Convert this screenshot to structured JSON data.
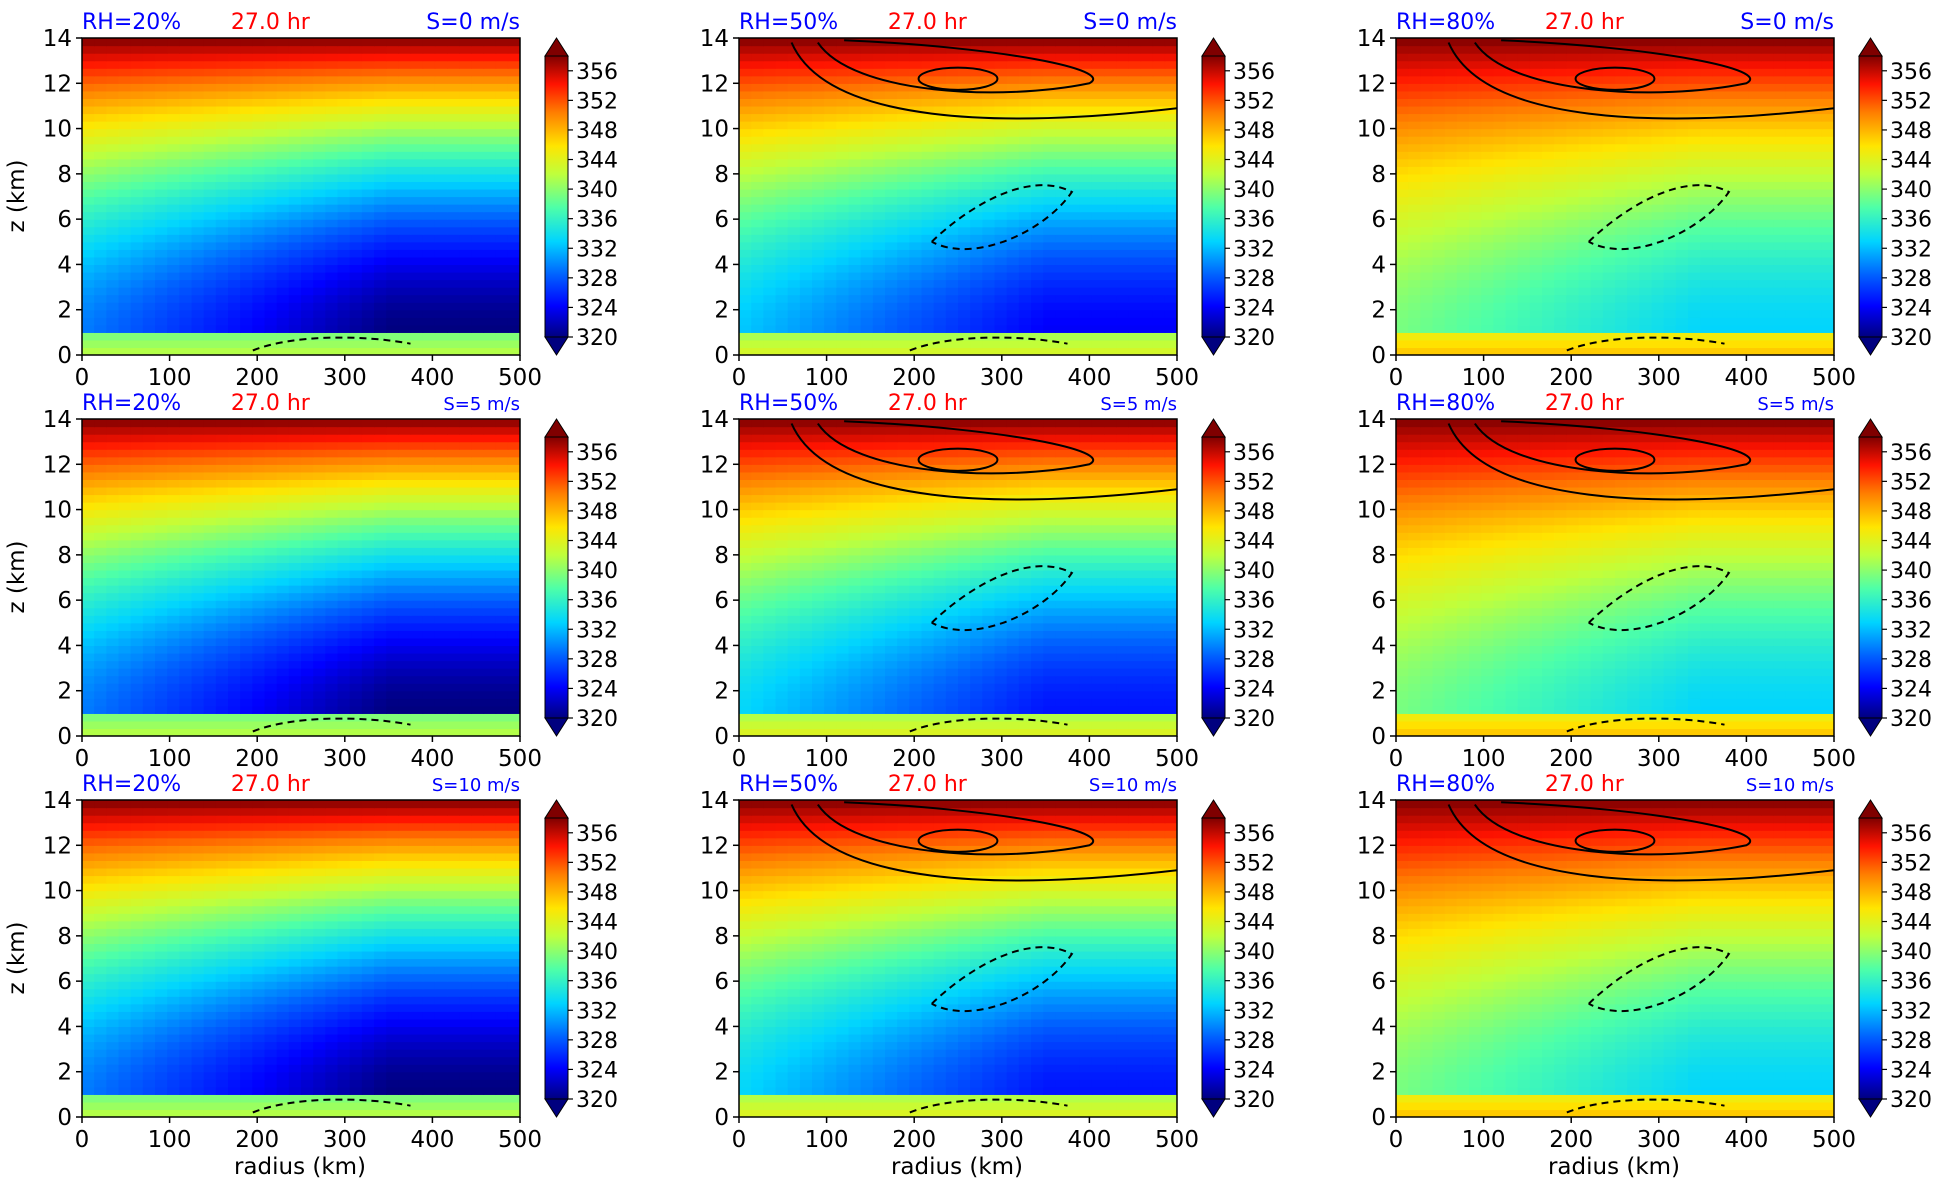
{
  "figure": {
    "xlabel": "radius (km)",
    "ylabel": "z (km)",
    "colorbar_ticks": [
      "320",
      "324",
      "328",
      "332",
      "336",
      "340",
      "344",
      "348",
      "352",
      "356"
    ],
    "colorbar_range": [
      320,
      358
    ],
    "title_rh_color": "#0000ff",
    "title_time_color": "#ff0000",
    "title_shear_color": "#0000ff"
  },
  "chart_data": [
    {
      "type": "heatmap",
      "rh": "RH=20%",
      "time": "27.0 hr",
      "shear": "S=0 m/s",
      "xlim": [
        0,
        500
      ],
      "ylim": [
        0,
        14
      ],
      "x_ticks": [
        "0",
        "100",
        "200",
        "300",
        "400",
        "500"
      ],
      "y_ticks": [
        "0",
        "2",
        "4",
        "6",
        "8",
        "10",
        "12",
        "14"
      ],
      "min_theta_value": 320,
      "max_theta_value": 358,
      "solid_contours": false
    },
    {
      "type": "heatmap",
      "rh": "RH=50%",
      "time": "27.0 hr",
      "shear": "S=0 m/s",
      "xlim": [
        0,
        500
      ],
      "ylim": [
        0,
        14
      ],
      "x_ticks": [
        "0",
        "100",
        "200",
        "300",
        "400",
        "500"
      ],
      "y_ticks": [
        "0",
        "2",
        "4",
        "6",
        "8",
        "10",
        "12",
        "14"
      ],
      "min_theta_value": 324,
      "max_theta_value": 358,
      "solid_contours": true
    },
    {
      "type": "heatmap",
      "rh": "RH=80%",
      "time": "27.0 hr",
      "shear": "S=0 m/s",
      "xlim": [
        0,
        500
      ],
      "ylim": [
        0,
        14
      ],
      "x_ticks": [
        "0",
        "100",
        "200",
        "300",
        "400",
        "500"
      ],
      "y_ticks": [
        "0",
        "2",
        "4",
        "6",
        "8",
        "10",
        "12",
        "14"
      ],
      "min_theta_value": 333,
      "max_theta_value": 358,
      "solid_contours": true
    },
    {
      "type": "heatmap",
      "rh": "RH=20%",
      "time": "27.0 hr",
      "shear": "S=5 m/s",
      "xlim": [
        0,
        500
      ],
      "ylim": [
        0,
        14
      ],
      "x_ticks": [
        "0",
        "100",
        "200",
        "300",
        "400",
        "500"
      ],
      "y_ticks": [
        "0",
        "2",
        "4",
        "6",
        "8",
        "10",
        "12",
        "14"
      ],
      "min_theta_value": 320,
      "max_theta_value": 358,
      "solid_contours": false
    },
    {
      "type": "heatmap",
      "rh": "RH=50%",
      "time": "27.0 hr",
      "shear": "S=5 m/s",
      "xlim": [
        0,
        500
      ],
      "ylim": [
        0,
        14
      ],
      "x_ticks": [
        "0",
        "100",
        "200",
        "300",
        "400",
        "500"
      ],
      "y_ticks": [
        "0",
        "2",
        "4",
        "6",
        "8",
        "10",
        "12",
        "14"
      ],
      "min_theta_value": 325,
      "max_theta_value": 358,
      "solid_contours": true
    },
    {
      "type": "heatmap",
      "rh": "RH=80%",
      "time": "27.0 hr",
      "shear": "S=5 m/s",
      "xlim": [
        0,
        500
      ],
      "ylim": [
        0,
        14
      ],
      "x_ticks": [
        "0",
        "100",
        "200",
        "300",
        "400",
        "500"
      ],
      "y_ticks": [
        "0",
        "2",
        "4",
        "6",
        "8",
        "10",
        "12",
        "14"
      ],
      "min_theta_value": 333,
      "max_theta_value": 358,
      "solid_contours": true
    },
    {
      "type": "heatmap",
      "rh": "RH=20%",
      "time": "27.0 hr",
      "shear": "S=10 m/s",
      "xlim": [
        0,
        500
      ],
      "ylim": [
        0,
        14
      ],
      "x_ticks": [
        "0",
        "100",
        "200",
        "300",
        "400",
        "500"
      ],
      "y_ticks": [
        "0",
        "2",
        "4",
        "6",
        "8",
        "10",
        "12",
        "14"
      ],
      "min_theta_value": 320,
      "max_theta_value": 358,
      "solid_contours": false
    },
    {
      "type": "heatmap",
      "rh": "RH=50%",
      "time": "27.0 hr",
      "shear": "S=10 m/s",
      "xlim": [
        0,
        500
      ],
      "ylim": [
        0,
        14
      ],
      "x_ticks": [
        "0",
        "100",
        "200",
        "300",
        "400",
        "500"
      ],
      "y_ticks": [
        "0",
        "2",
        "4",
        "6",
        "8",
        "10",
        "12",
        "14"
      ],
      "min_theta_value": 325,
      "max_theta_value": 358,
      "solid_contours": true
    },
    {
      "type": "heatmap",
      "rh": "RH=80%",
      "time": "27.0 hr",
      "shear": "S=10 m/s",
      "xlim": [
        0,
        500
      ],
      "ylim": [
        0,
        14
      ],
      "x_ticks": [
        "0",
        "100",
        "200",
        "300",
        "400",
        "500"
      ],
      "y_ticks": [
        "0",
        "2",
        "4",
        "6",
        "8",
        "10",
        "12",
        "14"
      ],
      "min_theta_value": 333,
      "max_theta_value": 358,
      "solid_contours": true
    }
  ]
}
